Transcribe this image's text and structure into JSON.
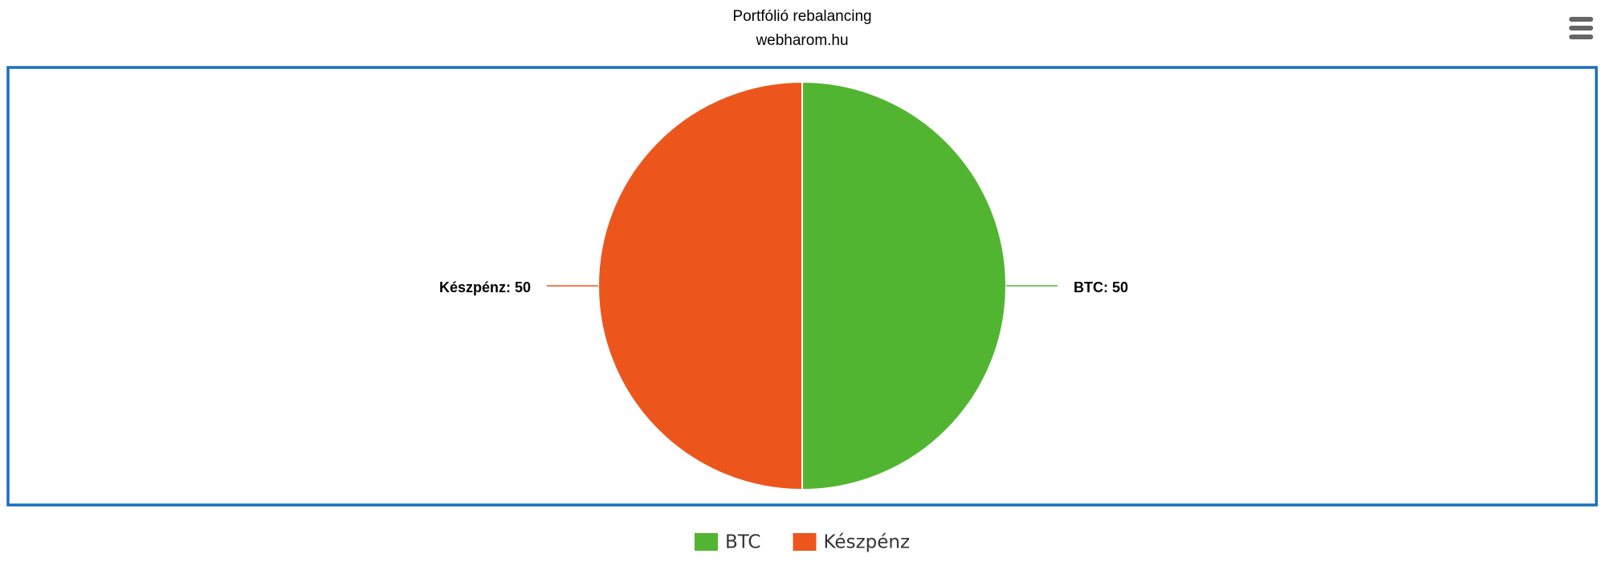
{
  "chart_data": {
    "type": "pie",
    "title": "Portfólió rebalancing",
    "subtitle": "webharom.hu",
    "categories": [
      "BTC",
      "Készpénz"
    ],
    "values": [
      50,
      50
    ],
    "value_labels": [
      "BTC: 50",
      "Készpénz: 50"
    ],
    "colors": [
      "#52b532",
      "#ec561d"
    ],
    "legend": "bottom"
  }
}
